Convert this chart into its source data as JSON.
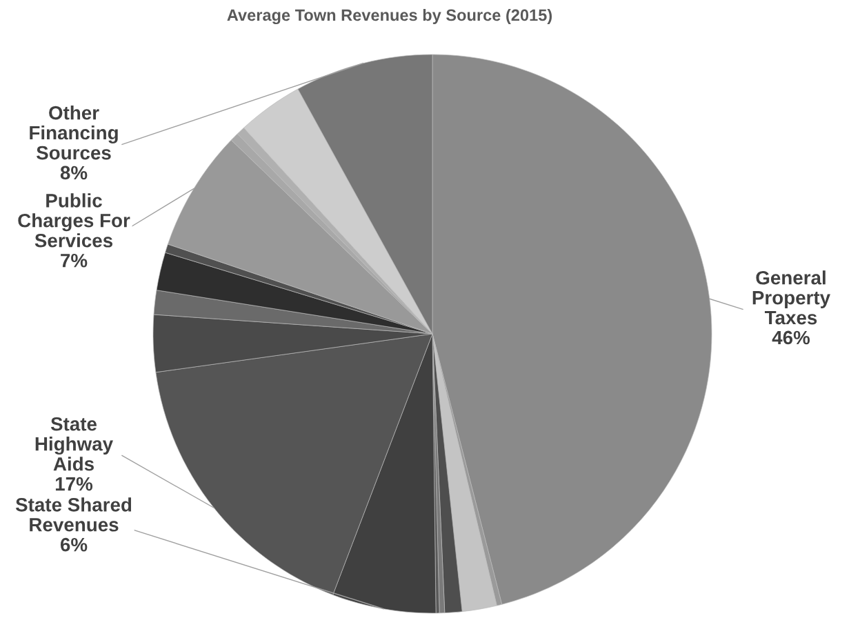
{
  "chart_data": {
    "type": "pie",
    "title": "Average Town Revenues by Source (2015)",
    "categories": [
      "General\nProperty\nTaxes",
      null,
      null,
      null,
      null,
      null,
      "State Shared\nRevenues",
      "State\nHighway\nAids",
      null,
      null,
      null,
      null,
      "Public\nCharges For\nServices",
      null,
      null,
      null,
      "Other\nFinancing\nSources"
    ],
    "values": [
      46,
      0.3,
      2.0,
      1.0,
      0.3,
      0.2,
      6,
      17,
      3.3,
      1.4,
      2.2,
      0.5,
      7,
      0.5,
      0.5,
      3.8,
      8
    ],
    "value_labels": [
      "46%",
      null,
      null,
      null,
      null,
      null,
      "6%",
      "17%",
      null,
      null,
      null,
      null,
      "7%",
      null,
      null,
      null,
      "8%"
    ],
    "colors": [
      "#8a8a8a",
      "#9a9a9a",
      "#c4c4c4",
      "#4e4e4e",
      "#7a7a7a",
      "#5a5a5a",
      "#404040",
      "#555555",
      "#4a4a4a",
      "#6a6a6a",
      "#2e2e2e",
      "#505050",
      "#999999",
      "#a8a8a8",
      "#b0b0b0",
      "#cdcdcd",
      "#777777"
    ]
  }
}
